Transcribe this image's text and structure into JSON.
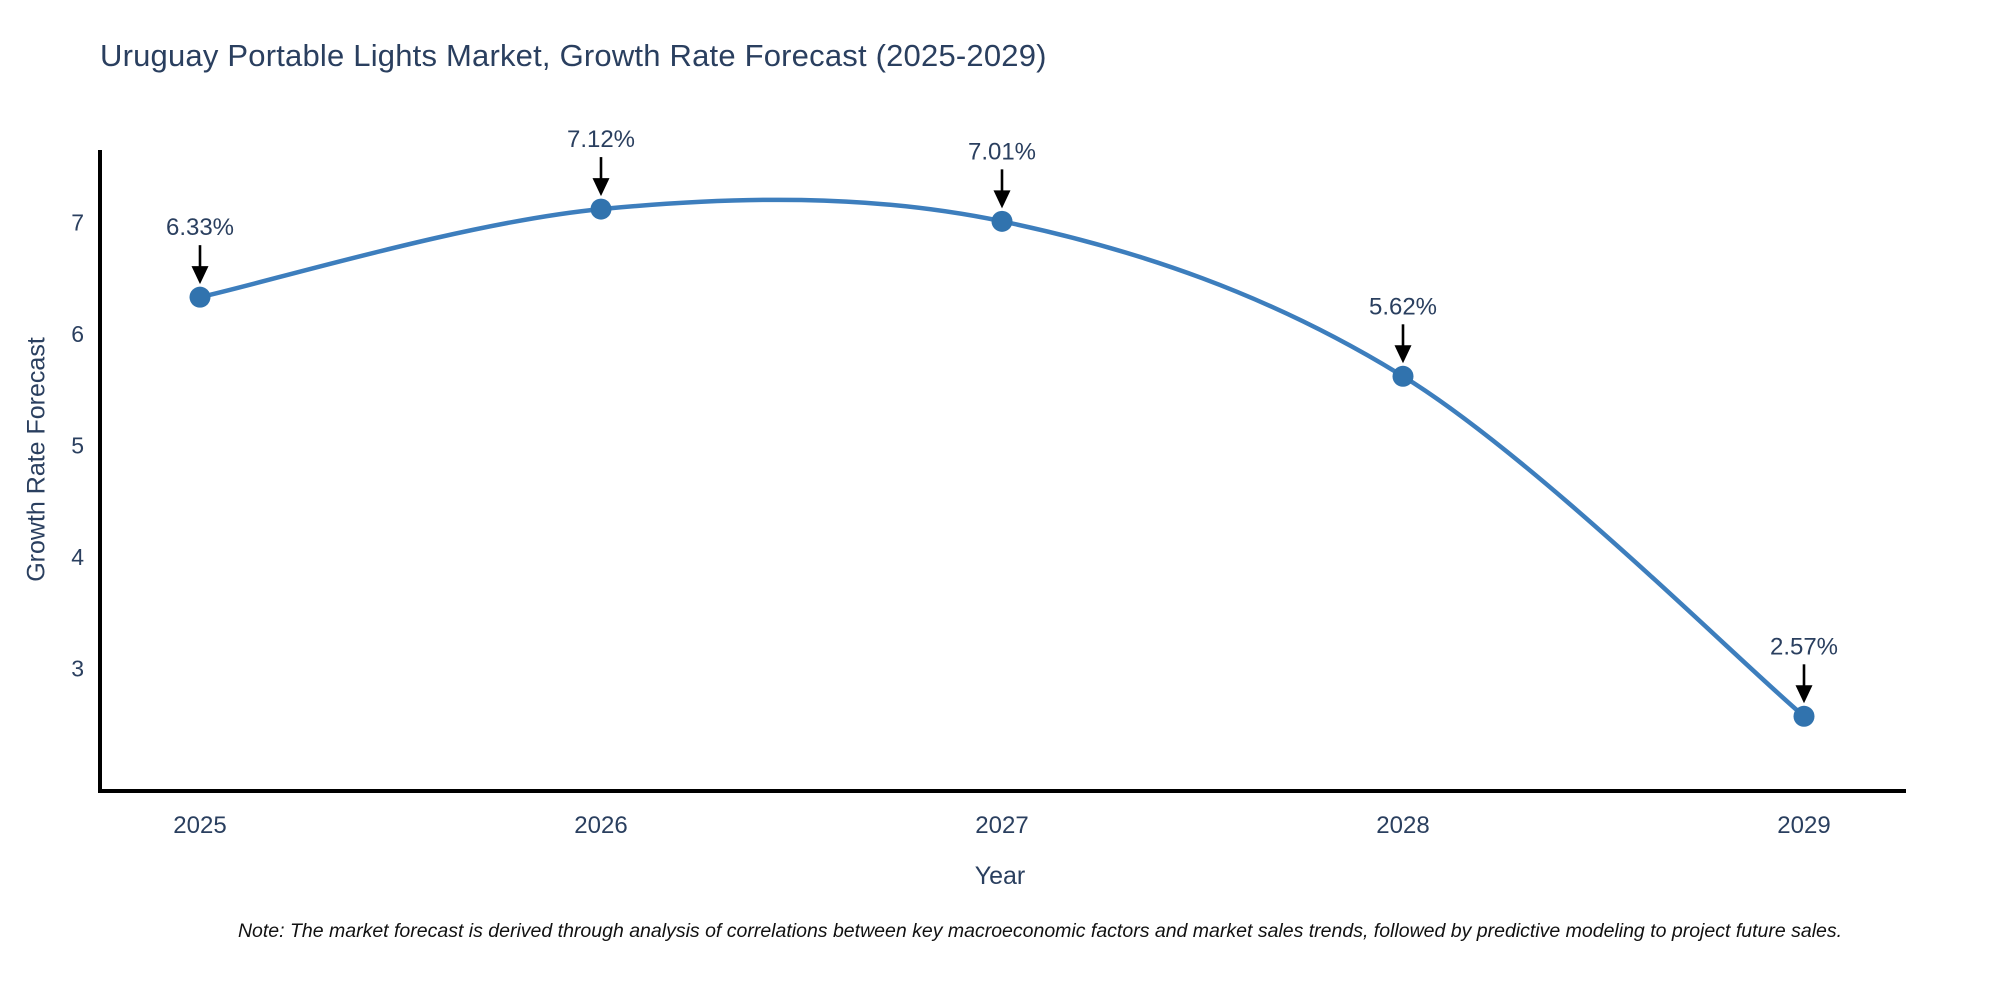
{
  "chart_data": {
    "type": "line",
    "line_shape": "spline",
    "title": "Uruguay Portable Lights Market, Growth Rate Forecast (2025-2029)",
    "xlabel": "Year",
    "ylabel": "Growth Rate Forecast",
    "categories": [
      "2025",
      "2026",
      "2027",
      "2028",
      "2029"
    ],
    "values": [
      6.33,
      7.12,
      7.01,
      5.62,
      2.57
    ],
    "point_labels": [
      "6.33%",
      "7.12%",
      "7.01%",
      "5.62%",
      "2.57%"
    ],
    "yticks": [
      3,
      4,
      5,
      6,
      7
    ],
    "ylim": [
      1.9,
      7.65
    ],
    "grid": false,
    "legend": "none",
    "colors": {
      "line": "#3d7ebd",
      "marker": "#3173ae",
      "axis": "#000000",
      "text": "#2a3f5f",
      "annotation_text": "#2a3f5f",
      "annotation_arrow": "#000000",
      "background": "#ffffff"
    },
    "note": "Note: The market forecast is derived through analysis of correlations between key macroeconomic factors and market sales trends, followed by predictive modeling to project future sales."
  }
}
